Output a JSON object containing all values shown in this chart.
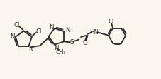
{
  "bg_color": "#faf6ee",
  "line_color": "#2a2a2a",
  "text_color": "#2a2a2a",
  "lw": 1.3,
  "fontsize": 6.2,
  "figsize": [
    2.27,
    1.11
  ],
  "dpi": 100,
  "xlim": [
    0,
    10.5
  ],
  "ylim": [
    0,
    4.9
  ]
}
